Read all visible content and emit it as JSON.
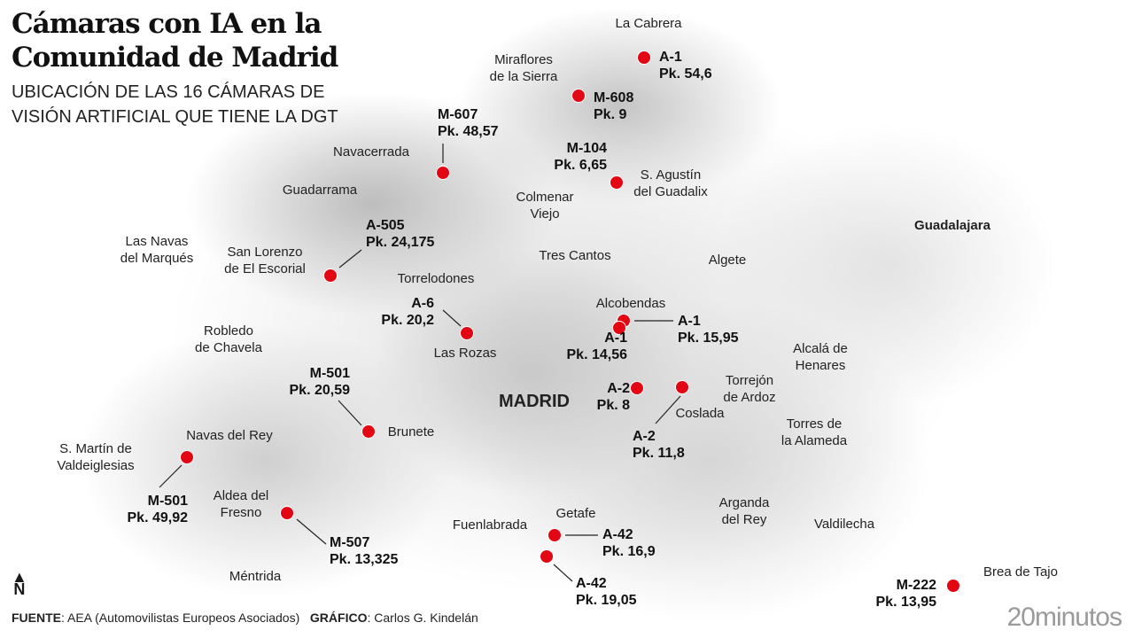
{
  "title_line1": "Cámaras con IA en la",
  "title_line2": "Comunidad de Madrid",
  "subtitle_line1": "UBICACIÓN DE LAS 16 CÁMARAS DE",
  "subtitle_line2": "VISIÓN ARTIFICIAL QUE TIENE LA DGT",
  "accent_color": "#e30613",
  "towns": [
    {
      "l1": "La Cabrera"
    },
    {
      "l1": "Miraflores",
      "l2": "de la Sierra"
    },
    {
      "l1": "Navacerrada"
    },
    {
      "l1": "Guadarrama"
    },
    {
      "l1": "S. Agustín",
      "l2": "del Guadalix"
    },
    {
      "l1": "Colmenar",
      "l2": "Viejo"
    },
    {
      "l1": "Guadalajara"
    },
    {
      "l1": "Las Navas",
      "l2": "del Marqués"
    },
    {
      "l1": "San Lorenzo",
      "l2": "de El Escorial"
    },
    {
      "l1": "Tres Cantos"
    },
    {
      "l1": "Algete"
    },
    {
      "l1": "Torrelodones"
    },
    {
      "l1": "Alcobendas"
    },
    {
      "l1": "Robledo",
      "l2": "de Chavela"
    },
    {
      "l1": "Las Rozas"
    },
    {
      "l1": "Alcalá de",
      "l2": "Henares"
    },
    {
      "l1": "Torrejón",
      "l2": "de Ardoz"
    },
    {
      "l1": "MADRID"
    },
    {
      "l1": "Coslada"
    },
    {
      "l1": "Torres de",
      "l2": "la Alameda"
    },
    {
      "l1": "Brunete"
    },
    {
      "l1": "Navas del Rey"
    },
    {
      "l1": "S. Martín de",
      "l2": "Valdeiglesias"
    },
    {
      "l1": "Aldea del",
      "l2": "Fresno"
    },
    {
      "l1": "Getafe"
    },
    {
      "l1": "Fuenlabrada"
    },
    {
      "l1": "Arganda",
      "l2": "del Rey"
    },
    {
      "l1": "Valdilecha"
    },
    {
      "l1": "Méntrida"
    },
    {
      "l1": "Brea de Tajo"
    }
  ],
  "cameras": [
    {
      "road": "A-1",
      "pk": "Pk. 54,6"
    },
    {
      "road": "M-608",
      "pk": "Pk. 9"
    },
    {
      "road": "M-607",
      "pk": "Pk. 48,57"
    },
    {
      "road": "M-104",
      "pk": "Pk. 6,65"
    },
    {
      "road": "A-505",
      "pk": "Pk. 24,175"
    },
    {
      "road": "A-6",
      "pk": "Pk. 20,2"
    },
    {
      "road": "A-1",
      "pk": "Pk. 15,95"
    },
    {
      "road": "A-1",
      "pk": "Pk. 14,56"
    },
    {
      "road": "A-2",
      "pk": "Pk. 8"
    },
    {
      "road": "A-2",
      "pk": "Pk. 11,8"
    },
    {
      "road": "M-501",
      "pk": "Pk. 20,59"
    },
    {
      "road": "M-501",
      "pk": "Pk. 49,92"
    },
    {
      "road": "M-507",
      "pk": "Pk. 13,325"
    },
    {
      "road": "A-42",
      "pk": "Pk. 16,9"
    },
    {
      "road": "A-42",
      "pk": "Pk. 19,05"
    },
    {
      "road": "M-222",
      "pk": "Pk. 13,95"
    }
  ],
  "north_label": "N",
  "footer": {
    "source_label": "FUENTE",
    "source": ": AEA (Automovilistas Europeos Asociados)",
    "graphic_label": "GRÁFICO",
    "graphic": ": Carlos G. Kindelán"
  },
  "logo": "20minutos"
}
